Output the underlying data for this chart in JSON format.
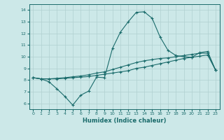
{
  "xlabel": "Humidex (Indice chaleur)",
  "ylabel": "",
  "xlim": [
    -0.5,
    23.5
  ],
  "ylim": [
    5.5,
    14.5
  ],
  "xticks": [
    0,
    1,
    2,
    3,
    4,
    5,
    6,
    7,
    8,
    9,
    10,
    11,
    12,
    13,
    14,
    15,
    16,
    17,
    18,
    19,
    20,
    21,
    22,
    23
  ],
  "yticks": [
    6,
    7,
    8,
    9,
    10,
    11,
    12,
    13,
    14
  ],
  "bg_color": "#cce8e8",
  "line_color": "#1a6b6b",
  "grid_color": "#b0d0d0",
  "line1_x": [
    0,
    1,
    2,
    3,
    4,
    5,
    6,
    7,
    8,
    9,
    10,
    11,
    12,
    13,
    14,
    15,
    16,
    17,
    18,
    19,
    20,
    21,
    22,
    23
  ],
  "line1_y": [
    8.2,
    8.1,
    8.1,
    8.1,
    8.15,
    8.2,
    8.25,
    8.3,
    8.4,
    8.5,
    8.6,
    8.7,
    8.8,
    9.0,
    9.1,
    9.25,
    9.4,
    9.55,
    9.7,
    9.85,
    9.95,
    10.05,
    10.15,
    8.85
  ],
  "line2_x": [
    0,
    1,
    2,
    3,
    4,
    5,
    6,
    7,
    8,
    9,
    10,
    11,
    12,
    13,
    14,
    15,
    16,
    17,
    18,
    19,
    20,
    21,
    22,
    23
  ],
  "line2_y": [
    8.2,
    8.1,
    8.1,
    8.15,
    8.2,
    8.28,
    8.35,
    8.45,
    8.6,
    8.7,
    8.9,
    9.1,
    9.3,
    9.5,
    9.65,
    9.75,
    9.85,
    9.9,
    10.0,
    10.1,
    10.2,
    10.3,
    10.3,
    8.85
  ],
  "line3_x": [
    0,
    1,
    2,
    3,
    4,
    5,
    6,
    7,
    8,
    9,
    10,
    11,
    12,
    13,
    14,
    15,
    16,
    17,
    18,
    19,
    20,
    21,
    22,
    23
  ],
  "line3_y": [
    8.2,
    8.1,
    7.85,
    7.25,
    6.6,
    5.85,
    6.7,
    7.05,
    8.25,
    8.2,
    10.7,
    12.1,
    13.0,
    13.8,
    13.85,
    13.3,
    11.7,
    10.55,
    10.1,
    10.0,
    9.95,
    10.35,
    10.45,
    8.85
  ]
}
